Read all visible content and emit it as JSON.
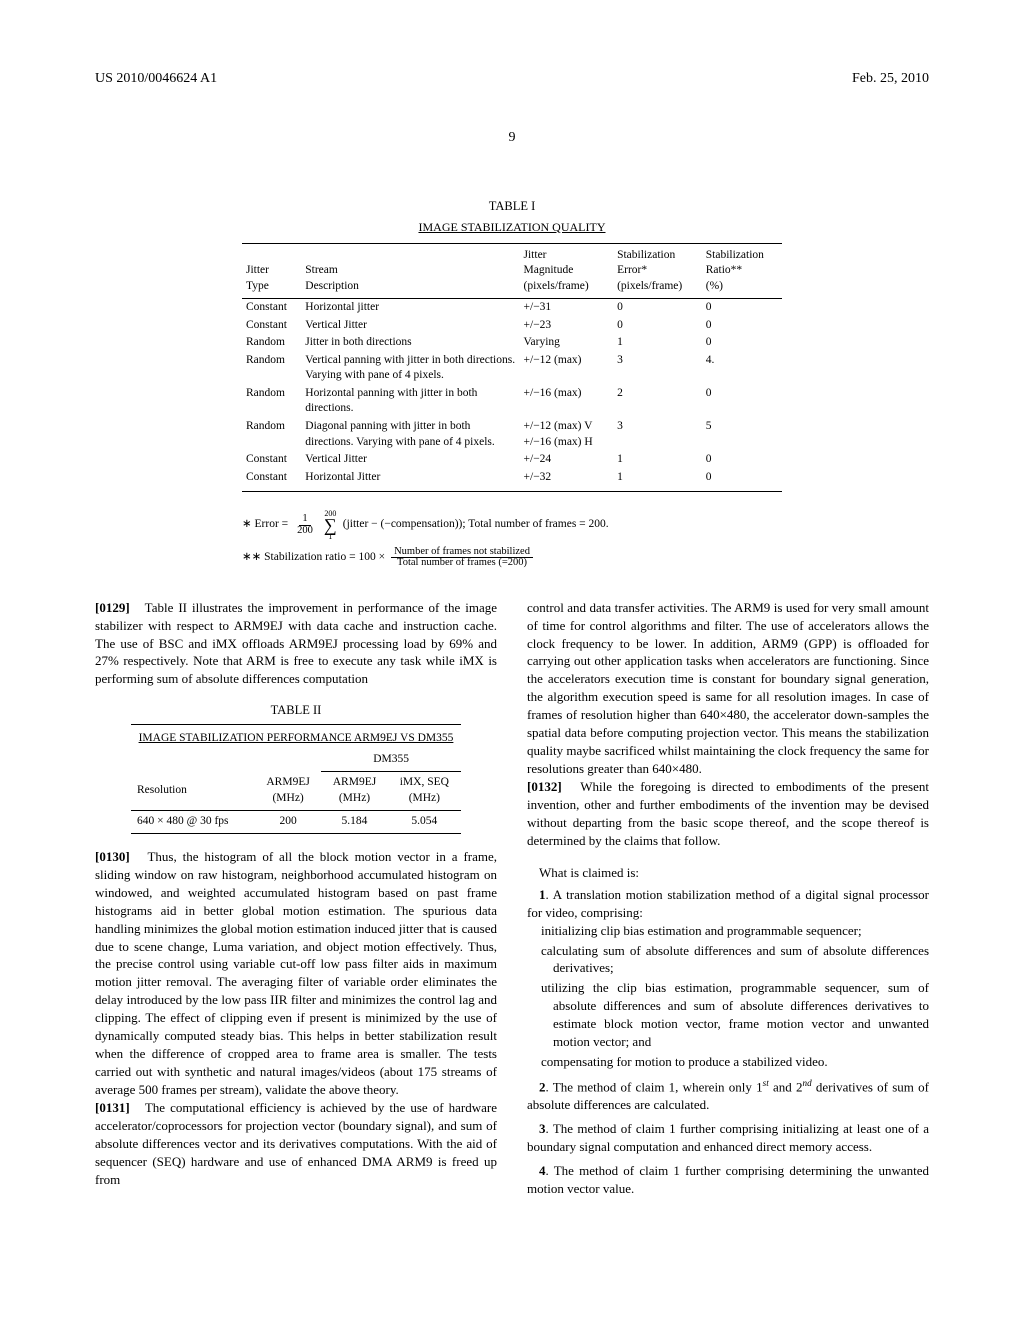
{
  "header": {
    "pub_number": "US 2010/0046624 A1",
    "pub_date": "Feb. 25, 2010"
  },
  "page_number": "9",
  "table1": {
    "caption": "TABLE I",
    "subtitle": "IMAGE STABILIZATION QUALITY",
    "columns": [
      "Jitter\nType",
      "Stream\nDescription",
      "Jitter\nMagnitude\n(pixels/frame)",
      "Stabilization\nError*\n(pixels/frame)",
      "Stabilization\nRatio**\n(%)"
    ],
    "rows": [
      [
        "Constant",
        "Horizontal jitter",
        "+/−31",
        "0",
        "0"
      ],
      [
        "Constant",
        "Vertical Jitter",
        "+/−23",
        "0",
        "0"
      ],
      [
        "Random",
        "Jitter in both directions",
        "Varying",
        "1",
        "0"
      ],
      [
        "Random",
        "Vertical panning with jitter in both directions. Varying with pane of 4 pixels.",
        "+/−12 (max)",
        "3",
        "4."
      ],
      [
        "Random",
        "Horizontal panning with jitter in both directions.",
        "+/−16 (max)",
        "2",
        "0"
      ],
      [
        "Random",
        "Diagonal panning with jitter in both directions. Varying with pane of 4 pixels.",
        "+/−12 (max) V\n+/−16 (max) H",
        "3",
        "5"
      ],
      [
        "Constant",
        "Vertical Jitter",
        "+/−24",
        "1",
        "0"
      ],
      [
        "Constant",
        "Horizontal Jitter",
        "+/−32",
        "1",
        "0"
      ]
    ]
  },
  "formulas": {
    "error_prefix": "∗ Error =",
    "error_frac_num": "1",
    "error_frac_den": "200",
    "error_sigma_top": "200",
    "error_sigma_bot": "1",
    "error_suffix": "(jitter − (−compensation)); Total number of frames = 200.",
    "stab_prefix": "∗∗ Stabilization ratio = 100 ×",
    "stab_frac_num": "Number of frames not stabilized",
    "stab_frac_den": "Total number of frames (=200)"
  },
  "paragraphs": {
    "p0129_num": "[0129]",
    "p0129": "Table II illustrates the improvement in performance of the image stabilizer with respect to ARM9EJ with data cache and instruction cache. The use of BSC and iMX offloads ARM9EJ processing load by 69% and 27% respectively. Note that ARM is free to execute any task while iMX is performing sum of absolute differences computation",
    "p0130_num": "[0130]",
    "p0130": "Thus, the histogram of all the block motion vector in a frame, sliding window on raw histogram, neighborhood accumulated histogram on windowed, and weighted accumulated histogram based on past frame histograms aid in better global motion estimation. The spurious data handling minimizes the global motion estimation induced jitter that is caused due to scene change, Luma variation, and object motion effectively. Thus, the precise control using variable cut-off low pass filter aids in maximum motion jitter removal. The averaging filter of variable order eliminates the delay introduced by the low pass IIR filter and minimizes the control lag and clipping. The effect of clipping even if present is minimized by the use of dynamically computed steady bias. This helps in better stabilization result when the difference of cropped area to frame area is smaller. The tests carried out with synthetic and natural images/videos (about 175 streams of average 500 frames per stream), validate the above theory.",
    "p0131_num": "[0131]",
    "p0131": "The computational efficiency is achieved by the use of hardware accelerator/coprocessors for projection vector (boundary signal), and sum of absolute differences vector and its derivatives computations. With the aid of sequencer (SEQ) hardware and use of enhanced DMA ARM9 is freed up from",
    "col2_top": "control and data transfer activities. The ARM9 is used for very small amount of time for control algorithms and filter. The use of accelerators allows the clock frequency to be lower. In addition, ARM9 (GPP) is offloaded for carrying out other application tasks when accelerators are functioning. Since the accelerators execution time is constant for boundary signal generation, the algorithm execution speed is same for all resolution images. In case of frames of resolution higher than 640×480, the accelerator down-samples the spatial data before computing projection vector. This means the stabilization quality maybe sacrificed whilst maintaining the clock frequency the same for resolutions greater than 640×480.",
    "p0132_num": "[0132]",
    "p0132": "While the foregoing is directed to embodiments of the present invention, other and further embodiments of the invention may be devised without departing from the basic scope thereof, and the scope thereof is determined by the claims that follow."
  },
  "table2": {
    "caption": "TABLE II",
    "subtitle": "IMAGE STABILIZATION PERFORMANCE ARM9EJ VS DM355",
    "group_header": "DM355",
    "columns": [
      "Resolution",
      "ARM9EJ\n(MHz)",
      "ARM9EJ\n(MHz)",
      "iMX, SEQ\n(MHz)"
    ],
    "rows": [
      [
        "640 × 480 @ 30 fps",
        "200",
        "5.184",
        "5.054"
      ]
    ]
  },
  "claims": {
    "intro": "What is claimed is:",
    "c1_num": "1",
    "c1_pre": ". A translation motion stabilization method of a digital signal processor for video, comprising:",
    "c1_steps": [
      "initializing clip bias estimation and programmable sequencer;",
      "calculating sum of absolute differences and sum of absolute differences derivatives;",
      "utilizing the clip bias estimation, programmable sequencer, sum of absolute differences and sum of absolute differences derivatives to estimate block motion vector, frame motion vector and unwanted motion vector; and",
      "compensating for motion to produce a stabilized video."
    ],
    "c2_num": "2",
    "c2": ". The method of claim 1, wherein only 1",
    "c2_sup1": "st",
    "c2_mid": " and 2",
    "c2_sup2": "nd",
    "c2_end": " derivatives of sum of absolute differences are calculated.",
    "c3_num": "3",
    "c3": ". The method of claim 1 further comprising initializing at least one of a boundary signal computation and enhanced direct memory access.",
    "c4_num": "4",
    "c4": ". The method of claim 1 further comprising determining the unwanted motion vector value."
  }
}
